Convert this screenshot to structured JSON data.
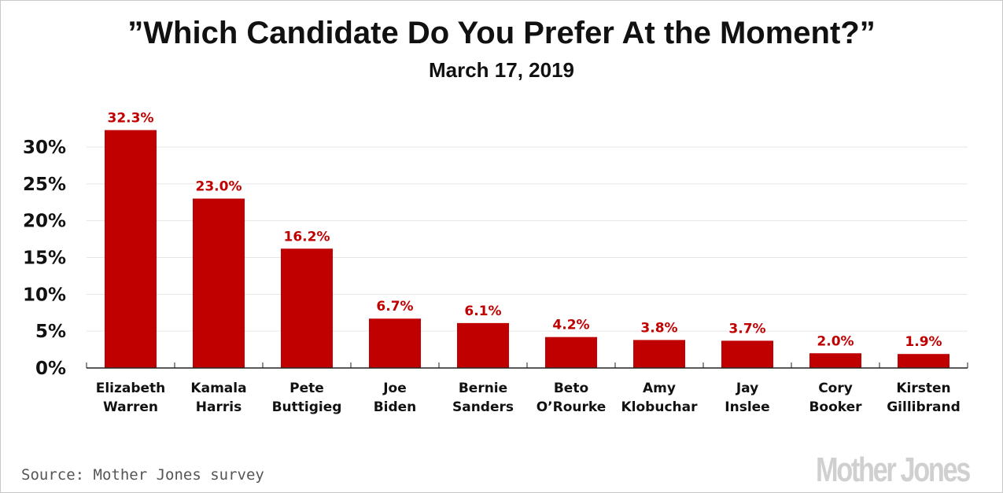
{
  "chart_data": {
    "type": "bar",
    "title": "”Which Candidate Do You Prefer At the Moment?”",
    "subtitle": "March 17, 2019",
    "categories": [
      [
        "Elizabeth",
        "Warren"
      ],
      [
        "Kamala",
        "Harris"
      ],
      [
        "Pete",
        "Buttigieg"
      ],
      [
        "Joe",
        "Biden"
      ],
      [
        "Bernie",
        "Sanders"
      ],
      [
        "Beto",
        "O’Rourke"
      ],
      [
        "Amy",
        "Klobuchar"
      ],
      [
        "Jay",
        "Inslee"
      ],
      [
        "Cory",
        "Booker"
      ],
      [
        "Kirsten",
        "Gillibrand"
      ]
    ],
    "values": [
      32.3,
      23.0,
      16.2,
      6.7,
      6.1,
      4.2,
      3.8,
      3.7,
      2.0,
      1.9
    ],
    "data_labels": [
      "32.3%",
      "23.0%",
      "16.2%",
      "6.7%",
      "6.1%",
      "4.2%",
      "3.8%",
      "3.7%",
      "2.0%",
      "1.9%"
    ],
    "yticks": [
      0,
      5,
      10,
      15,
      20,
      25,
      30
    ],
    "ytick_labels": [
      "0%",
      "5%",
      "10%",
      "15%",
      "20%",
      "25%",
      "30%"
    ],
    "ylim": [
      0,
      35
    ],
    "xlabel": "",
    "ylabel": "",
    "grid": true,
    "bar_color": "#c00000",
    "source": "Source: Mother Jones survey",
    "logo": "Mother Jones"
  }
}
